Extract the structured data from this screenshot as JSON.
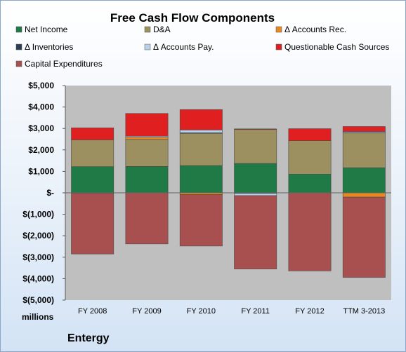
{
  "chart_data": {
    "type": "bar",
    "stacked": true,
    "title": "Free Cash Flow Components",
    "categories": [
      "FY 2008",
      "FY 2009",
      "FY 2010",
      "FY 2011",
      "FY 2012",
      "TTM 3-2013"
    ],
    "series": [
      {
        "name": "Net Income",
        "color": "#1f7a45",
        "values": [
          1220,
          1230,
          1270,
          1370,
          870,
          1170
        ]
      },
      {
        "name": "D&A",
        "color": "#9c9060",
        "values": [
          1250,
          1260,
          1500,
          1580,
          1560,
          1620
        ]
      },
      {
        "name": "Δ Accounts Rec.",
        "color": "#e8881e",
        "values": [
          -20,
          100,
          -80,
          -30,
          0,
          -200
        ]
      },
      {
        "name": "Δ Inventories",
        "color": "#2c3e56",
        "values": [
          0,
          0,
          30,
          0,
          0,
          20
        ]
      },
      {
        "name": "Δ Accounts Pay.",
        "color": "#b8d0ea",
        "values": [
          0,
          50,
          130,
          -100,
          0,
          50
        ]
      },
      {
        "name": "Questionable Cash Sources",
        "color": "#e02020",
        "values": [
          560,
          1060,
          950,
          30,
          560,
          230
        ]
      },
      {
        "name": "Capital Expenditures",
        "color": "#a85050",
        "values": [
          -2830,
          -2380,
          -2400,
          -3420,
          -3640,
          -3740
        ]
      }
    ],
    "ylim": [
      -5000,
      5000
    ],
    "yticks": [
      5000,
      4000,
      3000,
      2000,
      1000,
      0,
      -1000,
      -2000,
      -3000,
      -4000,
      -5000
    ],
    "ytick_labels": [
      "$5,000",
      "$4,000",
      "$3,000",
      "$2,000",
      "$1,000",
      "$-",
      "$(1,000)",
      "$(2,000)",
      "$(3,000)",
      "$(4,000)",
      "$(5,000)"
    ],
    "ylabel": "millions",
    "grid": false,
    "legend_position": "top",
    "company": "Entergy",
    "plot_background": "#bfbfbf"
  }
}
